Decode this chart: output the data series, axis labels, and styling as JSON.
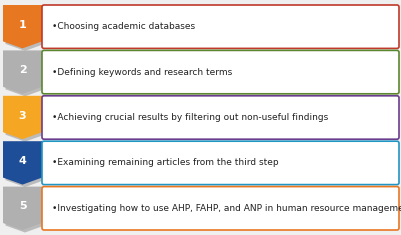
{
  "steps": [
    {
      "number": "1",
      "text": "•Choosing academic databases",
      "chevron_color": "#E87722",
      "border_color": "#C0392B"
    },
    {
      "number": "2",
      "text": "•Defining keywords and research terms",
      "chevron_color": "#B0B0B0",
      "border_color": "#5B8731"
    },
    {
      "number": "3",
      "text": "•Achieving crucial results by filtering out non-useful findings",
      "chevron_color": "#F5A623",
      "border_color": "#6A3D8F"
    },
    {
      "number": "4",
      "text": "•Examining remaining articles from the third step",
      "chevron_color": "#1F4E99",
      "border_color": "#2196C4"
    },
    {
      "number": "5",
      "text": "•Investigating how to use AHP, FAHP, and ANP in human resource management",
      "chevron_color": "#B0B0B0",
      "border_color": "#E87722"
    }
  ],
  "background_color": "#EFEFEF",
  "text_color": "#222222",
  "number_text_color": "#FFFFFF",
  "font_size": 6.5,
  "number_font_size": 8
}
